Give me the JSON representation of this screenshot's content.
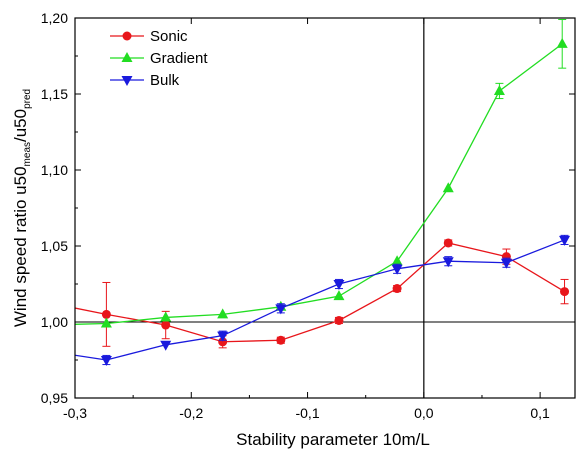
{
  "chart_data": {
    "type": "line",
    "title": "",
    "xlabel": "Stability parameter 10m/L",
    "ylabel": {
      "base": "Wind speed ratio u50",
      "sub1": "meas",
      "mid": "/u50",
      "sub2": "pred"
    },
    "xlim": [
      -0.3,
      0.13
    ],
    "ylim": [
      0.95,
      1.2
    ],
    "xticks": [
      -0.3,
      -0.2,
      -0.1,
      0.0,
      0.1
    ],
    "xtick_labels": [
      "-0,3",
      "-0,2",
      "-0,1",
      "0,0",
      "0,1"
    ],
    "yticks": [
      0.95,
      1.0,
      1.05,
      1.1,
      1.15,
      1.2
    ],
    "ytick_labels": [
      "0,95",
      "1,00",
      "1,05",
      "1,10",
      "1,15",
      "1,20"
    ],
    "reference_lines": {
      "x": 0.0,
      "y": 1.0
    },
    "legend_position": "top-left",
    "series": [
      {
        "name": "Sonic",
        "color": "#e8161b",
        "marker": "circle",
        "x": [
          -0.325,
          -0.273,
          -0.222,
          -0.173,
          -0.123,
          -0.073,
          -0.023,
          0.021,
          0.071,
          0.121
        ],
        "y": [
          1.013,
          1.005,
          0.998,
          0.987,
          0.988,
          1.001,
          1.022,
          1.052,
          1.043,
          1.02
        ],
        "err": [
          0,
          0.021,
          0.009,
          0.004,
          0.002,
          0.002,
          0.002,
          0.002,
          0.005,
          0.008
        ]
      },
      {
        "name": "Gradient",
        "color": "#22dd22",
        "marker": "triangle-up",
        "x": [
          -0.325,
          -0.273,
          -0.222,
          -0.173,
          -0.123,
          -0.073,
          -0.023,
          0.021,
          0.065,
          0.119
        ],
        "y": [
          0.998,
          0.999,
          1.003,
          1.005,
          1.01,
          1.017,
          1.04,
          1.088,
          1.152,
          1.183
        ],
        "err": [
          0,
          0,
          0,
          0,
          0,
          0,
          0,
          0,
          0.005,
          0.016
        ]
      },
      {
        "name": "Bulk",
        "color": "#1a1add",
        "marker": "triangle-down",
        "x": [
          -0.325,
          -0.273,
          -0.222,
          -0.173,
          -0.123,
          -0.073,
          -0.023,
          0.021,
          0.071,
          0.121
        ],
        "y": [
          0.981,
          0.975,
          0.985,
          0.991,
          1.009,
          1.025,
          1.035,
          1.04,
          1.039,
          1.054
        ],
        "err": [
          0,
          0.003,
          0,
          0.003,
          0.003,
          0.003,
          0.003,
          0.003,
          0.003,
          0.003
        ]
      }
    ]
  }
}
